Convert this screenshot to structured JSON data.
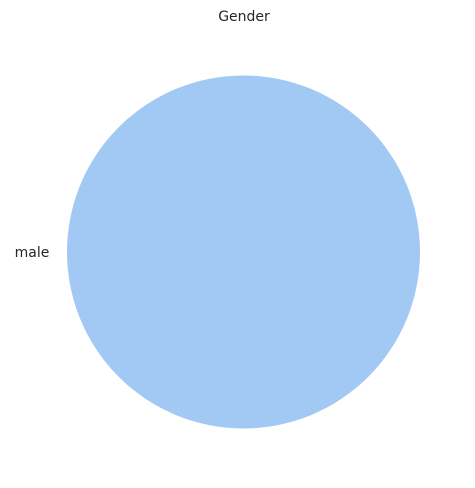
{
  "chart_data": {
    "type": "pie",
    "title": "Gender",
    "labels": [
      "male"
    ],
    "values": [
      100
    ],
    "colors": [
      "#a1c9f4"
    ],
    "legend": "none"
  }
}
